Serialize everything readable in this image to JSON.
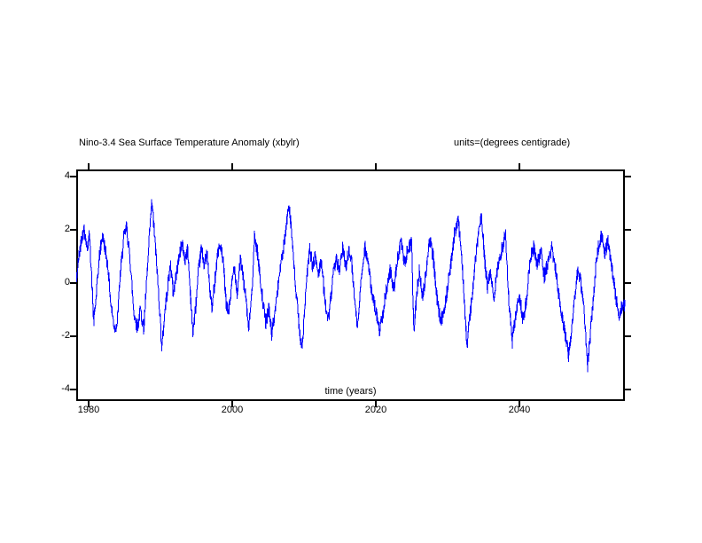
{
  "window": {
    "background": "#ffffff"
  },
  "chart_data": {
    "type": "line",
    "title": "Nino-3.4 Sea Surface Temperature Anomaly (xbylr)",
    "units_label": "units=(degrees centigrade)",
    "xlabel": "time (years)",
    "ylabel": "",
    "line_color": "#0000ff",
    "axis_color": "#000000",
    "background_color": "#ffffff",
    "grid": false,
    "legend_position": "none",
    "xlim": [
      1978.27,
      2054.7
    ],
    "ylim": [
      -4.43,
      4.27
    ],
    "xticks": [
      1980,
      2000,
      2020,
      2040
    ],
    "yticks": [
      -4,
      -2,
      0,
      2,
      4
    ],
    "series": [
      {
        "name": "Nino-3.4 SST anomaly",
        "appearance": "dense noisy sub-monthly line",
        "samples_per_year": 30,
        "noise_amplitude": 0.28,
        "noise_seed": 42,
        "anchors": {
          "x": [
            1978.27,
            1978.6,
            1979.0,
            1979.4,
            1979.8,
            1980.1,
            1980.4,
            1980.7,
            1981.0,
            1981.5,
            1981.9,
            1982.3,
            1982.7,
            1983.1,
            1983.6,
            1984.0,
            1984.4,
            1984.9,
            1985.3,
            1985.8,
            1986.3,
            1986.8,
            1987.2,
            1987.7,
            1988.1,
            1988.5,
            1988.8,
            1989.1,
            1989.5,
            1989.9,
            1990.2,
            1990.6,
            1991.0,
            1991.4,
            1991.8,
            1992.2,
            1992.6,
            1993.0,
            1993.4,
            1993.8,
            1994.2,
            1994.5,
            1994.9,
            1995.3,
            1995.7,
            1996.1,
            1996.5,
            1996.9,
            1997.2,
            1997.6,
            1998.0,
            1998.4,
            1998.8,
            1999.2,
            1999.5,
            1999.9,
            2000.3,
            2000.7,
            2001.1,
            2001.5,
            2001.9,
            2002.3,
            2002.7,
            2003.1,
            2003.5,
            2003.9,
            2004.3,
            2004.7,
            2005.1,
            2005.5,
            2005.9,
            2006.3,
            2006.7,
            2007.1,
            2007.5,
            2007.9,
            2008.2,
            2008.5,
            2008.9,
            2009.3,
            2009.7,
            2010.0,
            2010.4,
            2010.8,
            2011.2,
            2011.6,
            2012.0,
            2012.4,
            2012.8,
            2013.3,
            2013.7,
            2014.1,
            2014.5,
            2014.9,
            2015.4,
            2015.8,
            2016.2,
            2016.6,
            2017.0,
            2017.5,
            2018.0,
            2018.5,
            2019.0,
            2019.5,
            2020.0,
            2020.5,
            2021.0,
            2021.5,
            2022.0,
            2022.5,
            2023.1,
            2023.5,
            2024.0,
            2024.5,
            2025.0,
            2025.3,
            2025.7,
            2026.1,
            2026.5,
            2027.0,
            2027.5,
            2028.0,
            2028.5,
            2029.0,
            2029.5,
            2030.0,
            2030.5,
            2031.0,
            2031.5,
            2032.0,
            2032.4,
            2032.7,
            2033.1,
            2033.5,
            2034.0,
            2034.4,
            2034.7,
            2035.0,
            2035.2,
            2035.6,
            2036.0,
            2036.4,
            2036.8,
            2037.2,
            2037.6,
            2038.1,
            2038.5,
            2039.0,
            2039.5,
            2040.0,
            2040.5,
            2041.0,
            2041.5,
            2042.0,
            2042.5,
            2043.0,
            2043.5,
            2044.0,
            2044.5,
            2045.0,
            2045.5,
            2046.0,
            2046.5,
            2046.9,
            2047.3,
            2047.7,
            2048.1,
            2048.5,
            2048.9,
            2049.2,
            2049.5,
            2049.9,
            2050.3,
            2050.7,
            2051.1,
            2051.5,
            2051.9,
            2052.3,
            2052.7,
            2053.1,
            2053.5,
            2053.9,
            2054.3,
            2054.7
          ],
          "y": [
            0.0,
            0.9,
            1.7,
            2.05,
            1.3,
            1.8,
            0.4,
            -1.5,
            -0.7,
            1.0,
            1.8,
            1.3,
            0.6,
            -0.8,
            -1.7,
            -1.5,
            0.3,
            1.7,
            2.1,
            0.8,
            -1.1,
            -1.7,
            -1.0,
            -1.7,
            0.1,
            1.9,
            3.05,
            2.1,
            0.6,
            -1.0,
            -2.45,
            -1.1,
            -0.2,
            0.7,
            -0.4,
            0.3,
            1.0,
            1.5,
            0.9,
            1.3,
            -0.5,
            -1.85,
            -1.0,
            0.4,
            1.3,
            0.7,
            1.1,
            -0.3,
            -1.0,
            0.2,
            1.2,
            1.4,
            0.6,
            -0.9,
            -1.1,
            -0.2,
            0.7,
            -0.4,
            0.9,
            0.3,
            -0.6,
            -1.75,
            -0.5,
            1.7,
            1.2,
            0.2,
            -0.8,
            -1.5,
            -0.9,
            -1.9,
            -1.2,
            -0.3,
            0.6,
            1.2,
            2.0,
            3.05,
            2.2,
            1.0,
            -0.4,
            -1.5,
            -2.6,
            -1.4,
            0.2,
            1.3,
            0.6,
            1.0,
            0.3,
            0.9,
            -0.3,
            -1.5,
            -0.7,
            0.3,
            1.0,
            0.4,
            1.3,
            0.6,
            1.2,
            0.9,
            -0.4,
            -1.7,
            0.3,
            1.4,
            0.6,
            -0.5,
            -1.0,
            -1.8,
            -1.1,
            -0.2,
            0.5,
            -0.3,
            1.0,
            1.6,
            0.7,
            1.3,
            1.5,
            -1.9,
            -0.4,
            0.5,
            -0.6,
            0.4,
            1.7,
            1.0,
            -0.5,
            -1.5,
            -1.0,
            -0.2,
            0.8,
            1.9,
            2.37,
            1.0,
            -1.0,
            -2.37,
            -1.3,
            -0.3,
            1.2,
            2.0,
            2.57,
            1.5,
            0.8,
            -0.2,
            0.5,
            -0.6,
            0.2,
            0.9,
            1.3,
            1.85,
            -0.5,
            -2.2,
            -1.2,
            -0.4,
            -1.4,
            -0.6,
            0.8,
            1.4,
            0.7,
            1.2,
            0.2,
            0.8,
            1.3,
            0.6,
            -0.4,
            -1.3,
            -2.1,
            -2.75,
            -1.6,
            -0.6,
            0.4,
            0.1,
            -0.7,
            -1.8,
            -3.1,
            -1.9,
            -0.6,
            0.8,
            1.5,
            1.8,
            1.0,
            1.6,
            0.9,
            0.2,
            -0.6,
            -1.2,
            -0.9,
            -0.8
          ]
        }
      }
    ]
  }
}
